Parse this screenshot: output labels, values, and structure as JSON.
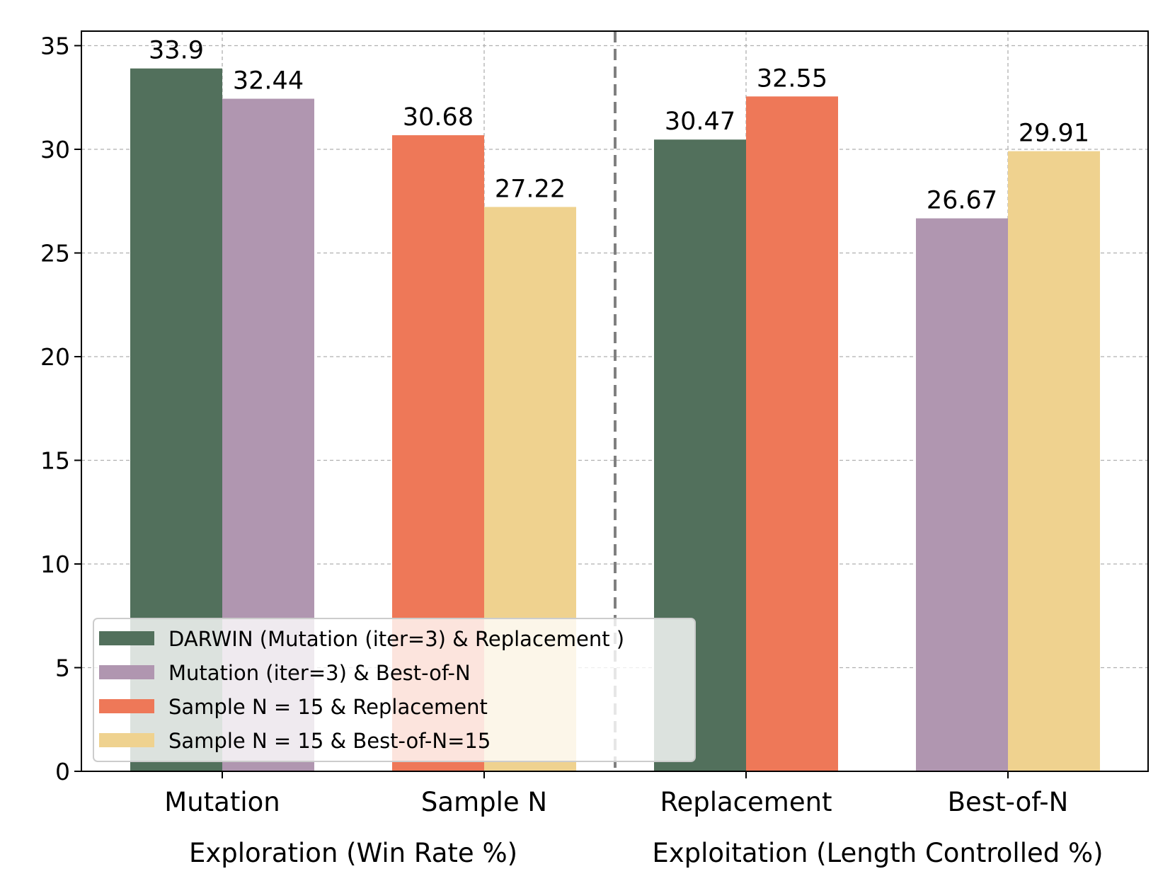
{
  "chart_data": {
    "type": "bar",
    "title": "",
    "xlabel": "",
    "ylabel": "",
    "ylim": [
      0,
      35.7
    ],
    "yticks": [
      0,
      5,
      10,
      15,
      20,
      25,
      30,
      35
    ],
    "grid": true,
    "legend_position": "lower-left",
    "categories": [
      "Mutation",
      "Sample N",
      "Replacement",
      "Best-of-N"
    ],
    "groups": [
      {
        "label": "Exploration (Win Rate %)",
        "categories": [
          "Mutation",
          "Sample N"
        ]
      },
      {
        "label": "Exploitation (Length Controlled %)",
        "categories": [
          "Replacement",
          "Best-of-N"
        ]
      }
    ],
    "series": [
      {
        "name": "DARWIN (Mutation (iter=3) & Replacement )",
        "color": "#52705c"
      },
      {
        "name": "Mutation (iter=3) & Best-of-N",
        "color": "#b096b0"
      },
      {
        "name": "Sample N = 15 & Replacement",
        "color": "#ee7858"
      },
      {
        "name": "Sample N = 15 & Best-of-N=15",
        "color": "#efd28f"
      }
    ],
    "bars": [
      {
        "category": "Mutation",
        "series": "DARWIN (Mutation (iter=3) & Replacement )",
        "value": 33.9,
        "label": "33.9"
      },
      {
        "category": "Mutation",
        "series": "Mutation (iter=3) & Best-of-N",
        "value": 32.44,
        "label": "32.44"
      },
      {
        "category": "Sample N",
        "series": "Sample N = 15 & Replacement",
        "value": 30.68,
        "label": "30.68"
      },
      {
        "category": "Sample N",
        "series": "Sample N = 15 & Best-of-N=15",
        "value": 27.22,
        "label": "27.22"
      },
      {
        "category": "Replacement",
        "series": "DARWIN (Mutation (iter=3) & Replacement )",
        "value": 30.47,
        "label": "30.47"
      },
      {
        "category": "Replacement",
        "series": "Sample N = 15 & Replacement",
        "value": 32.55,
        "label": "32.55"
      },
      {
        "category": "Best-of-N",
        "series": "Mutation (iter=3) & Best-of-N",
        "value": 26.67,
        "label": "26.67"
      },
      {
        "category": "Best-of-N",
        "series": "Sample N = 15 & Best-of-N=15",
        "value": 29.91,
        "label": "29.91"
      }
    ]
  }
}
